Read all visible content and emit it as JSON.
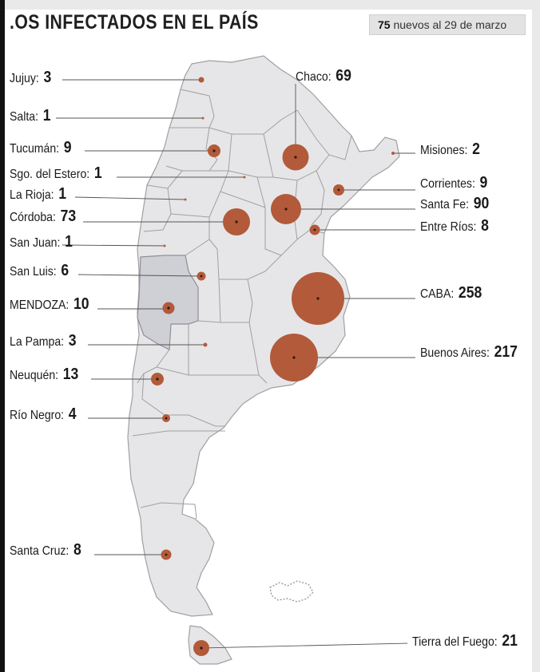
{
  "header": {
    "title": ".OS INFECTADOS EN EL PAÍS",
    "badge_number": "75",
    "badge_text": "nuevos al 29 de marzo"
  },
  "colors": {
    "bubble": "#b25a3a",
    "land": "#e6e6e8",
    "border": "#a0a0a4",
    "mendoza_fill": "#cfcfd6",
    "leader": "#555555"
  },
  "provinces": [
    {
      "name": "Jujuy:",
      "cases": 3
    },
    {
      "name": "Salta:",
      "cases": 1
    },
    {
      "name": "Tucumán:",
      "cases": 9
    },
    {
      "name": "Sgo. del Estero:",
      "cases": 1
    },
    {
      "name": "La Rioja:",
      "cases": 1
    },
    {
      "name": "Córdoba:",
      "cases": 73
    },
    {
      "name": "San Juan:",
      "cases": 1
    },
    {
      "name": "San Luis:",
      "cases": 6
    },
    {
      "name": "MENDOZA:",
      "cases": 10
    },
    {
      "name": "La Pampa:",
      "cases": 3
    },
    {
      "name": "Neuquén:",
      "cases": 13
    },
    {
      "name": "Río Negro:",
      "cases": 4
    },
    {
      "name": "Santa Cruz:",
      "cases": 8
    },
    {
      "name": "Chaco:",
      "cases": 69
    },
    {
      "name": "Misiones:",
      "cases": 2
    },
    {
      "name": "Corrientes:",
      "cases": 9
    },
    {
      "name": "Santa Fe:",
      "cases": 90
    },
    {
      "name": "Entre Ríos:",
      "cases": 8
    },
    {
      "name": "CABA:",
      "cases": 258
    },
    {
      "name": "Buenos Aires:",
      "cases": 217
    },
    {
      "name": "Tierra del Fuego:",
      "cases": 21
    }
  ]
}
